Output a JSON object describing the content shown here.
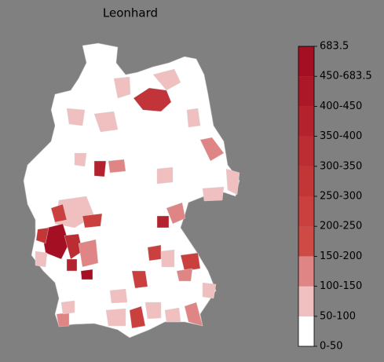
{
  "title": "Leonhard",
  "colorbar": {
    "labels": [
      "683.5",
      "450-683.5",
      "400-450",
      "350-400",
      "300-350",
      "250-300",
      "200-250",
      "150-200",
      "100-150",
      "50-100",
      "0-50"
    ],
    "colors": [
      "#a50f24",
      "#ad1829",
      "#b4222e",
      "#bb2c33",
      "#c23638",
      "#c9403e",
      "#cf4a45",
      "#e08585",
      "#f0c0c0",
      "#ffffff"
    ]
  }
}
